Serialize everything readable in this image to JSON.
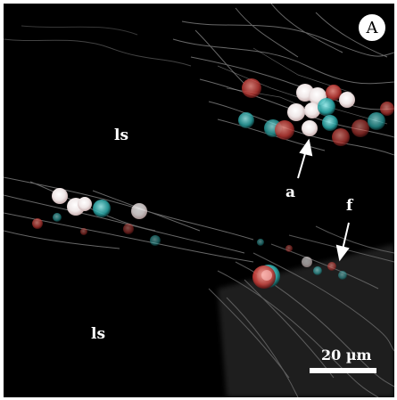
{
  "panel_label": "A",
  "labels": {
    "lumen_upper": "ls",
    "lumen_lower": "ls",
    "arrow_a": "a",
    "arrow_f": "f"
  },
  "scale_bar": {
    "text": "20 µm"
  },
  "colors": {
    "background": "#000000",
    "fibers": "#9a9a9a",
    "cells_cyan": "#3fd6d6",
    "cells_red": "#e0524f",
    "label": "#ffffff"
  }
}
